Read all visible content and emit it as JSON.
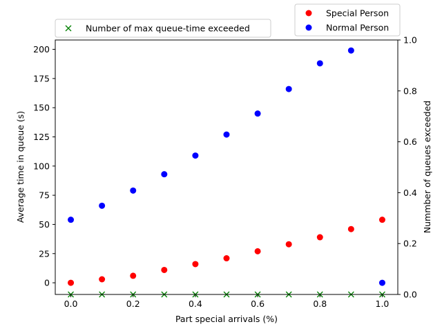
{
  "chart_data": {
    "type": "scatter",
    "xlabel": "Part special arrivals (%)",
    "ylabel_left": "Average time in queue (s)",
    "ylabel_right": "Nummber of queues exceeded",
    "xlim": [
      -0.05,
      1.05
    ],
    "ylim_left": [
      -10,
      208
    ],
    "ylim_right": [
      0,
      1
    ],
    "x_ticks": [
      "0.0",
      "0.2",
      "0.4",
      "0.6",
      "0.8",
      "1.0"
    ],
    "y_ticks_left": [
      "0",
      "25",
      "50",
      "75",
      "100",
      "125",
      "150",
      "175",
      "200"
    ],
    "y_ticks_right": [
      "0.0",
      "0.2",
      "0.4",
      "0.6",
      "0.8",
      "1.0"
    ],
    "grid": false,
    "series": [
      {
        "name": "Special Person",
        "axis": "left",
        "marker": "circle",
        "color": "#ff0000",
        "x": [
          0.0,
          0.1,
          0.2,
          0.3,
          0.4,
          0.5,
          0.6,
          0.7,
          0.8,
          0.9,
          1.0
        ],
        "y": [
          0,
          3,
          6,
          11,
          16,
          21,
          27,
          33,
          39,
          46,
          54
        ]
      },
      {
        "name": "Normal Person",
        "axis": "left",
        "marker": "circle",
        "color": "#0000ff",
        "x": [
          0.0,
          0.1,
          0.2,
          0.3,
          0.4,
          0.5,
          0.6,
          0.7,
          0.8,
          0.9,
          1.0
        ],
        "y": [
          54,
          66,
          79,
          93,
          109,
          127,
          145,
          166,
          188,
          199,
          0
        ]
      },
      {
        "name": "Number of max queue-time exceeded",
        "axis": "right",
        "marker": "x",
        "color": "#008000",
        "x": [
          0.0,
          0.1,
          0.2,
          0.3,
          0.4,
          0.5,
          0.6,
          0.7,
          0.8,
          0.9,
          1.0
        ],
        "y": [
          0,
          0,
          0,
          0,
          0,
          0,
          0,
          0,
          0,
          0,
          0
        ]
      }
    ],
    "legend_right_axis": {
      "placement": "top-left",
      "entries": [
        "Number of max queue-time exceeded"
      ]
    },
    "legend_left_axis": {
      "placement": "top-right",
      "entries": [
        "Special Person",
        "Normal Person"
      ]
    }
  }
}
